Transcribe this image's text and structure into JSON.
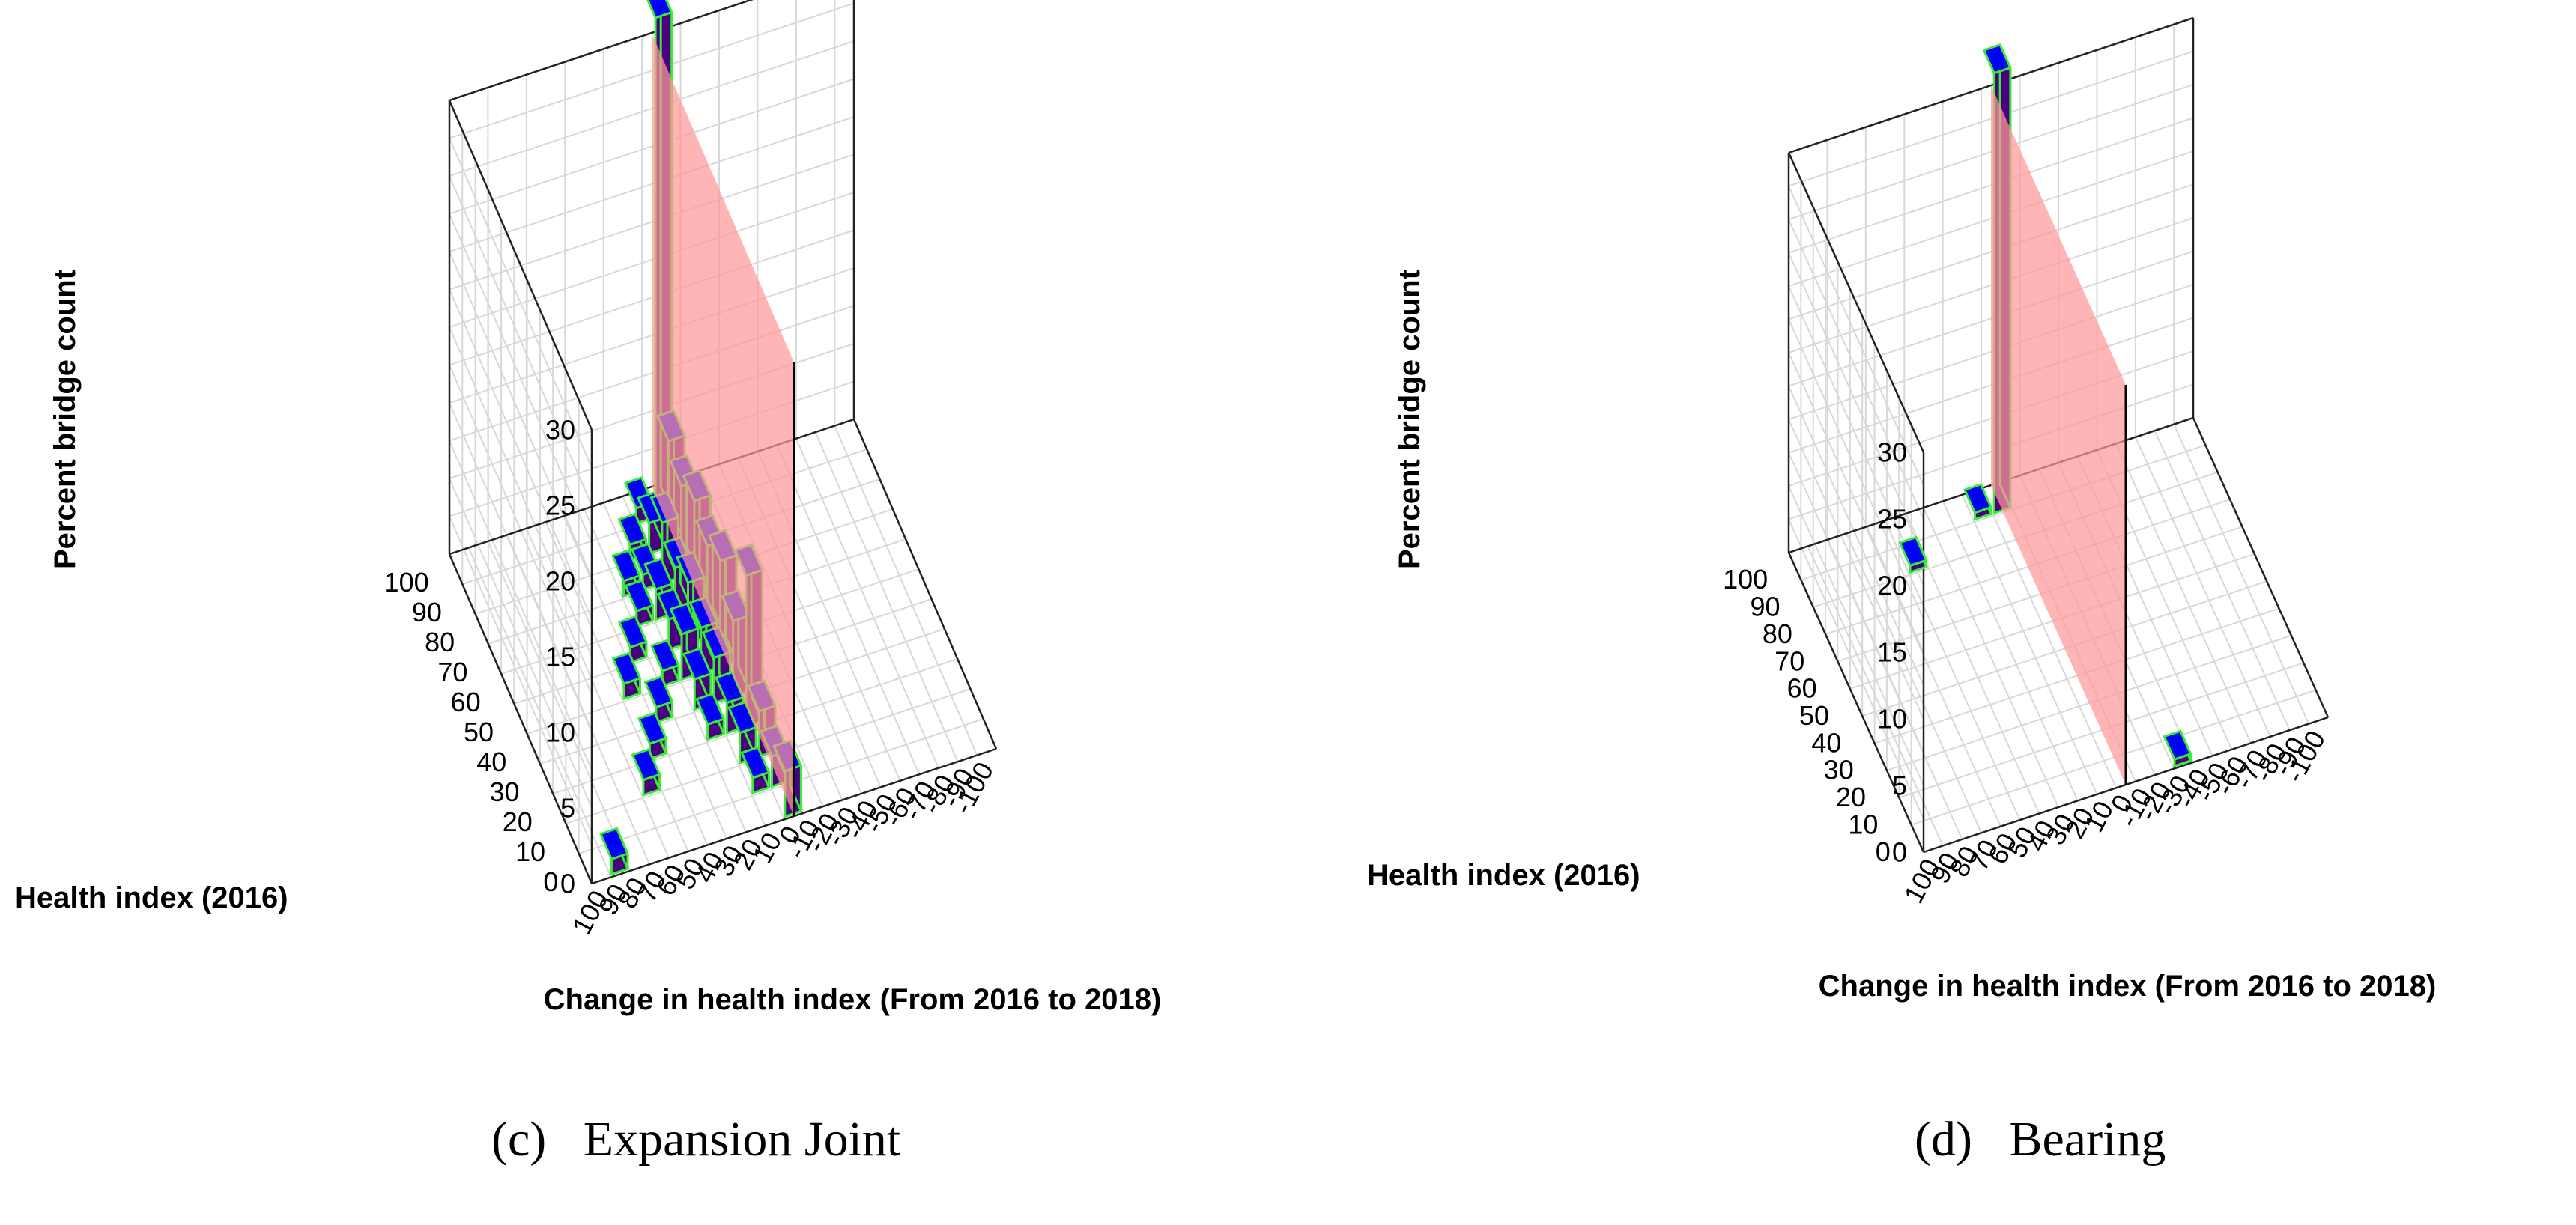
{
  "colors": {
    "bar_top": "#0000ff",
    "bar_side": "#4b0082",
    "bar_edge": "#33ee33",
    "wall_fill": "#ff9999",
    "grid": "#d8d8d8",
    "axis": "#000000"
  },
  "chart_data": [
    {
      "type": "bar3d",
      "panel": "c",
      "caption_label": "(c)",
      "caption_text": "Expansion Joint",
      "title": "",
      "zlabel": "Percent bridge count",
      "ylabel": "Health index (2016)",
      "xlabel": "Change in health index (From 2016 to 2018)",
      "zlim": [
        0,
        30
      ],
      "z_ticks": [
        "0",
        "5",
        "10",
        "15",
        "20",
        "25",
        "30"
      ],
      "y_ticks": [
        "0",
        "10",
        "20",
        "30",
        "40",
        "50",
        "60",
        "70",
        "80",
        "90",
        "100"
      ],
      "x_ticks": [
        "100",
        "90",
        "80",
        "70",
        "60",
        "50",
        "40",
        "30",
        "20",
        "10",
        "0",
        "-10",
        "-20",
        "-30",
        "-40",
        "-50",
        "-60",
        "-70",
        "-80",
        "-90",
        "-100"
      ],
      "grid": true,
      "reference_wall": {
        "change_in_health_index": 0,
        "height_percent": 30
      },
      "bars": [
        {
          "health_2016": 100,
          "change": 0,
          "percent": 33
        },
        {
          "health_2016": 100,
          "change": 10,
          "percent": 1
        },
        {
          "health_2016": 90,
          "change": 0,
          "percent": 7
        },
        {
          "health_2016": 90,
          "change": 10,
          "percent": 2
        },
        {
          "health_2016": 90,
          "change": 20,
          "percent": 1
        },
        {
          "health_2016": 80,
          "change": 0,
          "percent": 6
        },
        {
          "health_2016": 80,
          "change": 10,
          "percent": 4
        },
        {
          "health_2016": 80,
          "change": 20,
          "percent": 1
        },
        {
          "health_2016": 80,
          "change": 30,
          "percent": 1
        },
        {
          "health_2016": 70,
          "change": 0,
          "percent": 7
        },
        {
          "health_2016": 70,
          "change": 10,
          "percent": 3
        },
        {
          "health_2016": 70,
          "change": 20,
          "percent": 2
        },
        {
          "health_2016": 70,
          "change": 30,
          "percent": 1
        },
        {
          "health_2016": 60,
          "change": 0,
          "percent": 6
        },
        {
          "health_2016": 60,
          "change": 10,
          "percent": 4
        },
        {
          "health_2016": 60,
          "change": 20,
          "percent": 2
        },
        {
          "health_2016": 60,
          "change": 40,
          "percent": 1
        },
        {
          "health_2016": 50,
          "change": 0,
          "percent": 7
        },
        {
          "health_2016": 50,
          "change": 10,
          "percent": 3
        },
        {
          "health_2016": 50,
          "change": 20,
          "percent": 3
        },
        {
          "health_2016": 50,
          "change": 30,
          "percent": 1
        },
        {
          "health_2016": 50,
          "change": 50,
          "percent": 1
        },
        {
          "health_2016": 40,
          "change": 0,
          "percent": 5
        },
        {
          "health_2016": 40,
          "change": 10,
          "percent": 3
        },
        {
          "health_2016": 40,
          "change": 20,
          "percent": 2
        },
        {
          "health_2016": 40,
          "change": 40,
          "percent": 1
        },
        {
          "health_2016": 30,
          "change": 0,
          "percent": 10
        },
        {
          "health_2016": 30,
          "change": 10,
          "percent": 2
        },
        {
          "health_2016": 30,
          "change": 20,
          "percent": 1
        },
        {
          "health_2016": 30,
          "change": 50,
          "percent": 1
        },
        {
          "health_2016": 20,
          "change": 0,
          "percent": 3
        },
        {
          "health_2016": 20,
          "change": 10,
          "percent": 2
        },
        {
          "health_2016": 20,
          "change": 60,
          "percent": 1
        },
        {
          "health_2016": 10,
          "change": 0,
          "percent": 2
        },
        {
          "health_2016": 10,
          "change": 10,
          "percent": 1
        },
        {
          "health_2016": 0,
          "change": 0,
          "percent": 3
        },
        {
          "health_2016": 0,
          "change": 90,
          "percent": 1
        }
      ]
    },
    {
      "type": "bar3d",
      "panel": "d",
      "caption_label": "(d)",
      "caption_text": "Bearing",
      "title": "",
      "zlabel": "Percent bridge count",
      "ylabel": "Health index (2016)",
      "xlabel": "Change in health index (From 2016 to 2018)",
      "zlim": [
        0,
        30
      ],
      "z_ticks": [
        "0",
        "5",
        "10",
        "15",
        "20",
        "25",
        "30"
      ],
      "y_ticks": [
        "0",
        "10",
        "20",
        "30",
        "40",
        "50",
        "60",
        "70",
        "80",
        "90",
        "100"
      ],
      "x_ticks": [
        "100",
        "90",
        "80",
        "70",
        "60",
        "50",
        "40",
        "30",
        "20",
        "10",
        "0",
        "-10",
        "-20",
        "-30",
        "-40",
        "-50",
        "-60",
        "-70",
        "-80",
        "-90",
        "-100"
      ],
      "grid": true,
      "reference_wall": {
        "change_in_health_index": 0,
        "height_percent": 30
      },
      "bars": [
        {
          "health_2016": 100,
          "change": 0,
          "percent": 33
        },
        {
          "health_2016": 100,
          "change": 10,
          "percent": 0.5
        },
        {
          "health_2016": 90,
          "change": 50,
          "percent": 0.5
        },
        {
          "health_2016": 0,
          "change": -30,
          "percent": 0.5
        }
      ]
    }
  ]
}
